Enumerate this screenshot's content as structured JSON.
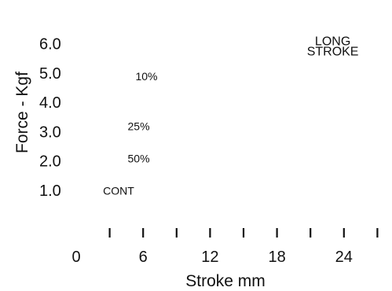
{
  "chart_data": {
    "type": "line",
    "title": "",
    "xlabel": "Stroke mm",
    "ylabel": "Force - Kgf",
    "x_ticks": [
      "0",
      "6",
      "12",
      "18",
      "24"
    ],
    "y_ticks": [
      "1.0",
      "2.0",
      "3.0",
      "4.0",
      "5.0",
      "6.0"
    ],
    "x_minor_tick_values": [
      3,
      6,
      9,
      12,
      15,
      18,
      21,
      24,
      27
    ],
    "xlim": [
      0,
      27
    ],
    "ylim": [
      1.0,
      6.0
    ],
    "grid": false,
    "annotations": [
      {
        "text": "LONG",
        "stroke_mm": 23.0,
        "force_kgf": 5.95
      },
      {
        "text": "STROKE",
        "stroke_mm": 23.0,
        "force_kgf": 5.6
      },
      {
        "text": "10%",
        "stroke_mm": 6.3,
        "force_kgf": 4.75
      },
      {
        "text": "25%",
        "stroke_mm": 5.6,
        "force_kgf": 3.05
      },
      {
        "text": "50%",
        "stroke_mm": 5.6,
        "force_kgf": 1.95
      },
      {
        "text": "CONT",
        "stroke_mm": 3.8,
        "force_kgf": 0.85
      }
    ],
    "series": []
  }
}
